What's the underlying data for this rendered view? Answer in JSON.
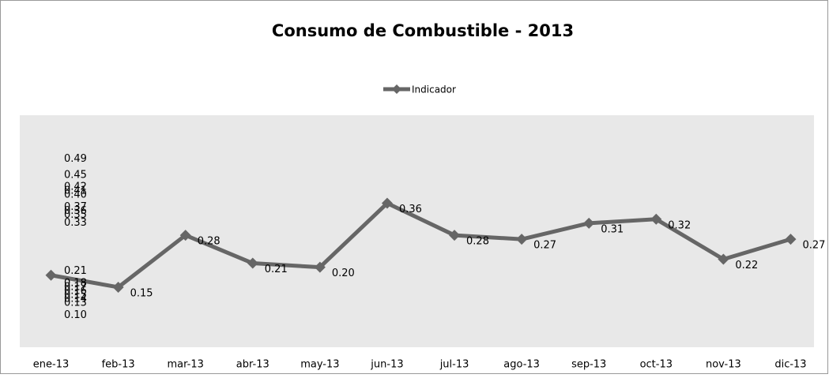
{
  "chart_data": {
    "type": "line",
    "title": "Consumo de Combustible - 2013",
    "categories": [
      "ene-13",
      "feb-13",
      "mar-13",
      "abr-13",
      "may-13",
      "jun-13",
      "jul-13",
      "ago-13",
      "sep-13",
      "oct-13",
      "nov-13",
      "dic-13"
    ],
    "series": [
      {
        "name": "Indicador",
        "color": "#666666",
        "values": [
          0.18,
          0.15,
          0.28,
          0.21,
          0.2,
          0.36,
          0.28,
          0.27,
          0.31,
          0.32,
          0.22,
          0.27
        ],
        "value_labels": [
          "0.18",
          "0.15",
          "0.28",
          "0.21",
          "0.20",
          "0.36",
          "0.28",
          "0.27",
          "0.31",
          "0.32",
          "0.22",
          "0.27"
        ]
      }
    ],
    "overlap_values": [
      0.49,
      0.45,
      0.42,
      0.41,
      0.4,
      0.37,
      0.36,
      0.35,
      0.33,
      0.21,
      0.18,
      0.17,
      0.16,
      0.15,
      0.14,
      0.13,
      0.1
    ],
    "overlap_labels": [
      "0.49",
      "0.45",
      "0.42",
      "0.41",
      "0.40",
      "0.37",
      "0.36",
      "0.35",
      "0.33",
      "0.21",
      "0.18",
      "0.17",
      "0.16",
      "0.15",
      "0.14",
      "0.13",
      "0.10"
    ],
    "ylim": [
      0,
      0.58
    ],
    "legend": "top"
  }
}
